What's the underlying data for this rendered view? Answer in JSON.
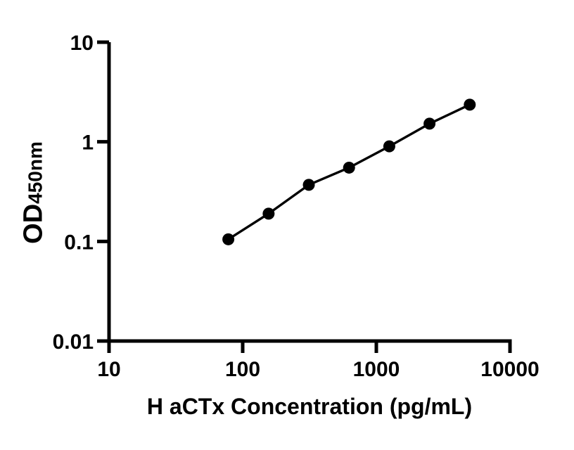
{
  "figure": {
    "background_color": "#ffffff",
    "axis_color": "#000000"
  },
  "chart_data": {
    "type": "scatter",
    "line_connect": true,
    "title": "",
    "xlabel": "H aCTx Concentration (pg/mL)",
    "ylabel_main": "OD",
    "ylabel_sub": "450nm",
    "x_scale": "log",
    "y_scale": "log",
    "xlim": [
      10,
      10000
    ],
    "ylim": [
      0.01,
      10
    ],
    "x_tick_values": [
      10,
      100,
      1000,
      10000
    ],
    "x_tick_labels": [
      "10",
      "100",
      "1000",
      "10000"
    ],
    "y_tick_values": [
      10,
      1,
      0.1,
      0.01
    ],
    "y_tick_labels": [
      "10",
      "1",
      "0.1",
      "0.01"
    ],
    "grid": false,
    "legend": "none",
    "color": "#000000",
    "marker": "filled-circle",
    "series": [
      {
        "x": [
          78.1,
          156.3,
          312.5,
          625,
          1250,
          2500,
          5000
        ],
        "y": [
          0.105,
          0.19,
          0.37,
          0.55,
          0.9,
          1.52,
          2.36
        ]
      }
    ]
  }
}
